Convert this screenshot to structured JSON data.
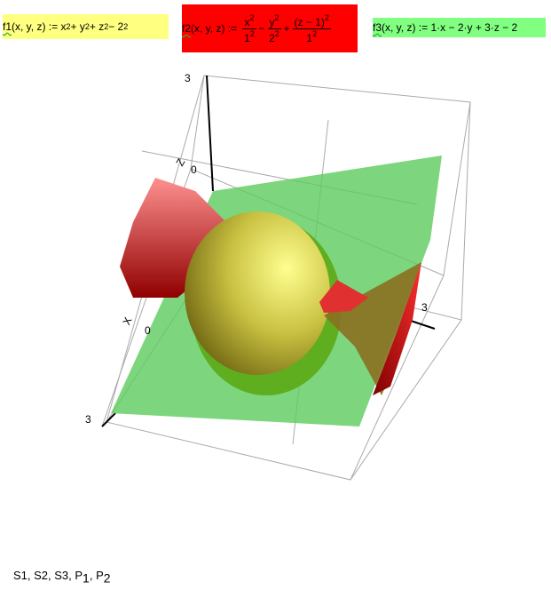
{
  "formulas": [
    {
      "name": "f1",
      "args": "(x, y, z) :=",
      "terms": [
        "x",
        "2",
        "+ y",
        "2",
        "+ z",
        "2",
        "− 2",
        "2"
      ]
    },
    {
      "name": "f2",
      "args": "(x, y, z) :=",
      "fractions": [
        {
          "num": "x",
          "num_exp": "2",
          "den": "1",
          "den_exp": "2"
        },
        {
          "num": "y",
          "num_exp": "2",
          "den": "2",
          "den_exp": "2"
        },
        {
          "num": "(z − 1)",
          "num_exp": "2",
          "den": "1",
          "den_exp": "2"
        }
      ],
      "ops": [
        "−",
        "+"
      ]
    },
    {
      "name": "f3",
      "args": "(x, y, z) :=",
      "expr": "1·x − 2·y + 3·z − 2"
    }
  ],
  "plot": {
    "z_label": "Z",
    "x_label": "X",
    "tick_labels": [
      "3",
      "0",
      "0",
      "3",
      "3"
    ]
  },
  "footer": {
    "text": "S1, S2, S3, P",
    "sub1": "1",
    "mid": ", P",
    "sub2": "2"
  }
}
